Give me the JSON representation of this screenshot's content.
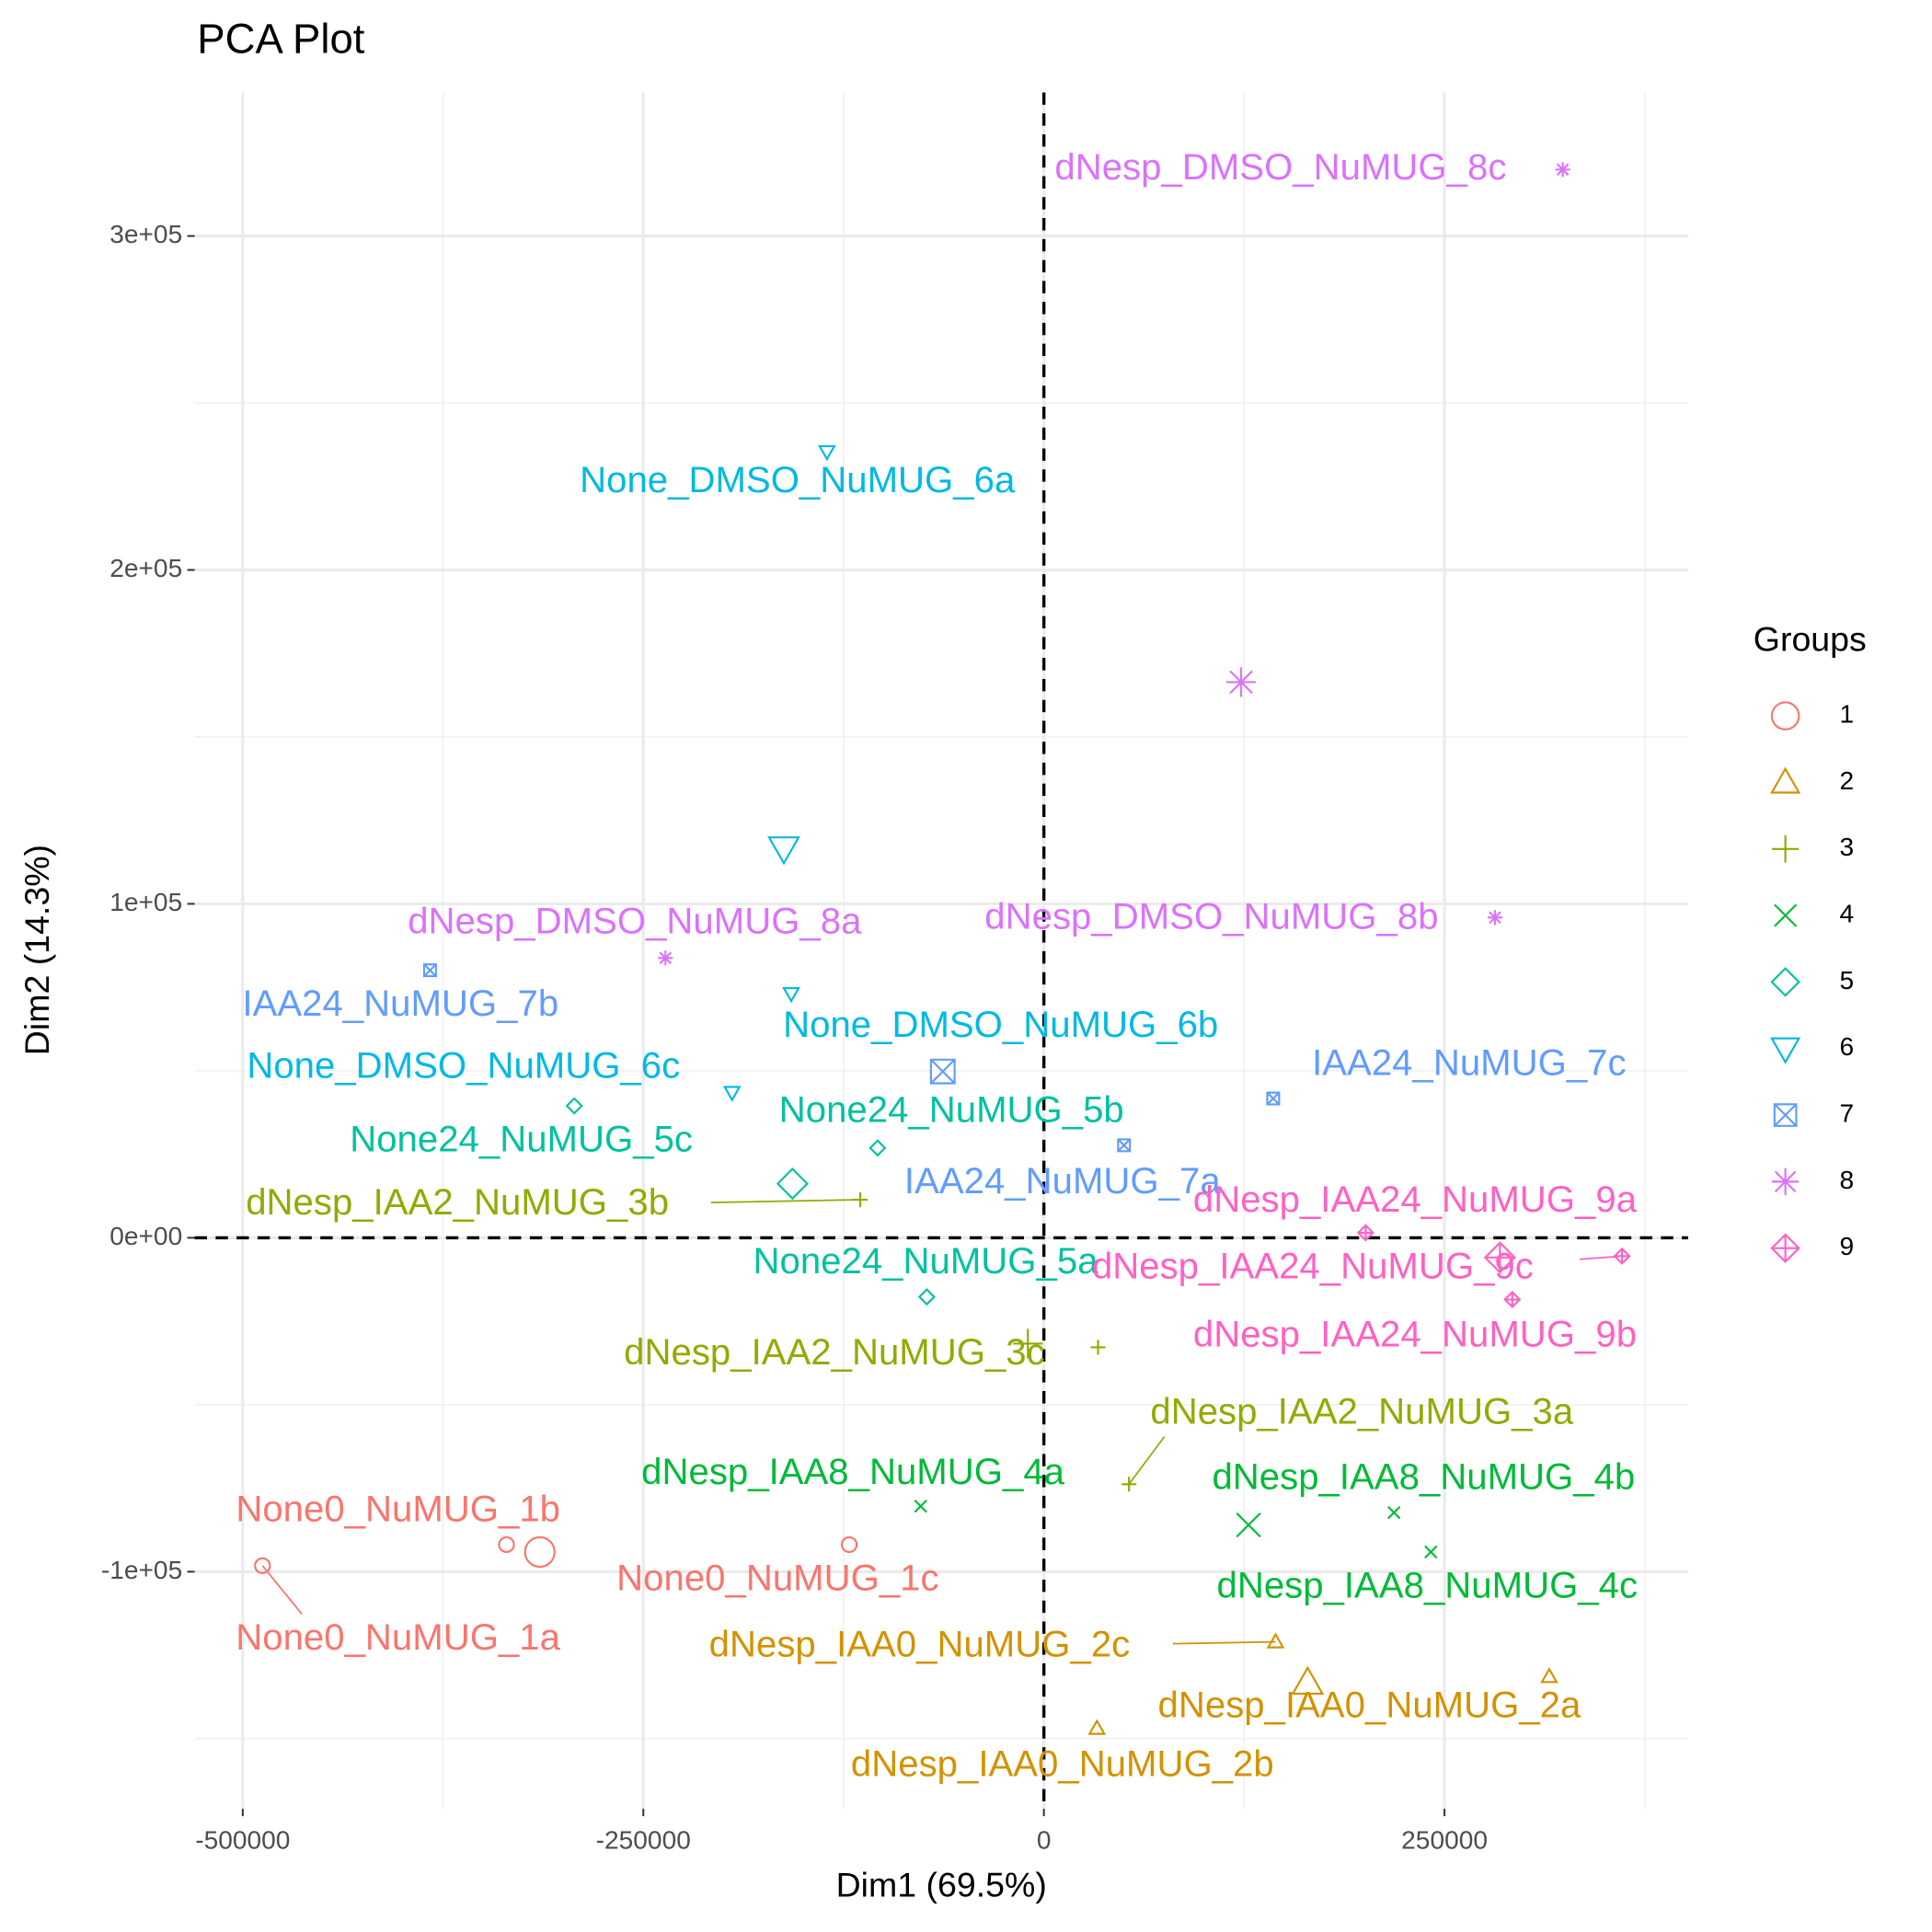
{
  "chart_data": {
    "type": "scatter",
    "title": "PCA Plot",
    "x_label": "Dim1 (69.5%)",
    "y_label": "Dim2 (14.3%)",
    "legend_title": "Groups",
    "legend": "right",
    "grid": true,
    "xlim": [
      -530000,
      402000
    ],
    "ylim": [
      -171000,
      343000
    ],
    "xticks": [
      -500000,
      -250000,
      0,
      250000
    ],
    "yticks": [
      {
        "value": -100000,
        "label": "-1e+05"
      },
      {
        "value": 0,
        "label": "0e+00"
      },
      {
        "value": 100000,
        "label": "1e+05"
      },
      {
        "value": 200000,
        "label": "2e+05"
      },
      {
        "value": 300000,
        "label": "3e+05"
      }
    ],
    "series": [
      {
        "name": "1",
        "color": "#F8766D",
        "shape": "circle",
        "labels": [
          "None0_NuMUG_1a",
          "None0_NuMUG_1b",
          "None0_NuMUG_1c"
        ],
        "x": [
          -487700,
          -335400,
          -121500
        ],
        "y": [
          -98200,
          -91900,
          -91900
        ],
        "center": [
          -314600,
          -94100
        ]
      },
      {
        "name": "2",
        "color": "#D39200",
        "shape": "triangle",
        "labels": [
          "dNesp_IAA0_NuMUG_2a",
          "dNesp_IAA0_NuMUG_2b",
          "dNesp_IAA0_NuMUG_2c"
        ],
        "x": [
          315400,
          33100,
          144600
        ],
        "y": [
          -131400,
          -146900,
          -121000
        ],
        "center": [
          164600,
          -133200
        ]
      },
      {
        "name": "3",
        "color": "#93AA00",
        "shape": "plus",
        "labels": [
          "dNesp_IAA2_NuMUG_3a",
          "dNesp_IAA2_NuMUG_3b",
          "dNesp_IAA2_NuMUG_3c"
        ],
        "x": [
          53100,
          -114600,
          33800
        ],
        "y": [
          -73800,
          11400,
          -32800
        ],
        "center": [
          -10000,
          -31700
        ]
      },
      {
        "name": "4",
        "color": "#00BA38",
        "shape": "cross",
        "labels": [
          "dNesp_IAA8_NuMUG_4a",
          "dNesp_IAA8_NuMUG_4b",
          "dNesp_IAA8_NuMUG_4c"
        ],
        "x": [
          -76900,
          218500,
          241500
        ],
        "y": [
          -80400,
          -82300,
          -94100
        ],
        "center": [
          127700,
          -86000
        ]
      },
      {
        "name": "5",
        "color": "#00C19F",
        "shape": "diamond",
        "labels": [
          "None24_NuMUG_5a",
          "None24_NuMUG_5b",
          "None24_NuMUG_5c"
        ],
        "x": [
          -73100,
          -103800,
          -293100
        ],
        "y": [
          -17700,
          26900,
          39500
        ],
        "center": [
          -156900,
          16200
        ]
      },
      {
        "name": "6",
        "color": "#00B9E3",
        "shape": "triangle-down",
        "labels": [
          "None_DMSO_NuMUG_6a",
          "None_DMSO_NuMUG_6b",
          "None_DMSO_NuMUG_6c"
        ],
        "x": [
          -135400,
          -157700,
          -194600
        ],
        "y": [
          235400,
          73100,
          43500
        ],
        "center": [
          -162300,
          116600
        ]
      },
      {
        "name": "7",
        "color": "#619CFF",
        "shape": "square-x",
        "labels": [
          "IAA24_NuMUG_7a",
          "IAA24_NuMUG_7b",
          "IAA24_NuMUG_7c"
        ],
        "x": [
          50000,
          -383100,
          143100
        ],
        "y": [
          27700,
          80100,
          41700
        ],
        "center": [
          -63100,
          49800
        ]
      },
      {
        "name": "8",
        "color": "#DB72FB",
        "shape": "asterisk",
        "labels": [
          "dNesp_DMSO_NuMUG_8a",
          "dNesp_DMSO_NuMUG_8b",
          "dNesp_DMSO_NuMUG_8c"
        ],
        "x": [
          -236200,
          281500,
          323800
        ],
        "y": [
          83800,
          95900,
          319900
        ],
        "center": [
          123100,
          166400
        ]
      },
      {
        "name": "9",
        "color": "#FF61C3",
        "shape": "diamond-plus",
        "labels": [
          "dNesp_IAA24_NuMUG_9a",
          "dNesp_IAA24_NuMUG_9b",
          "dNesp_IAA24_NuMUG_9c"
        ],
        "x": [
          200800,
          292300,
          360800
        ],
        "y": [
          1500,
          -18500,
          -5500
        ],
        "center": [
          284600,
          -5900
        ]
      }
    ]
  }
}
